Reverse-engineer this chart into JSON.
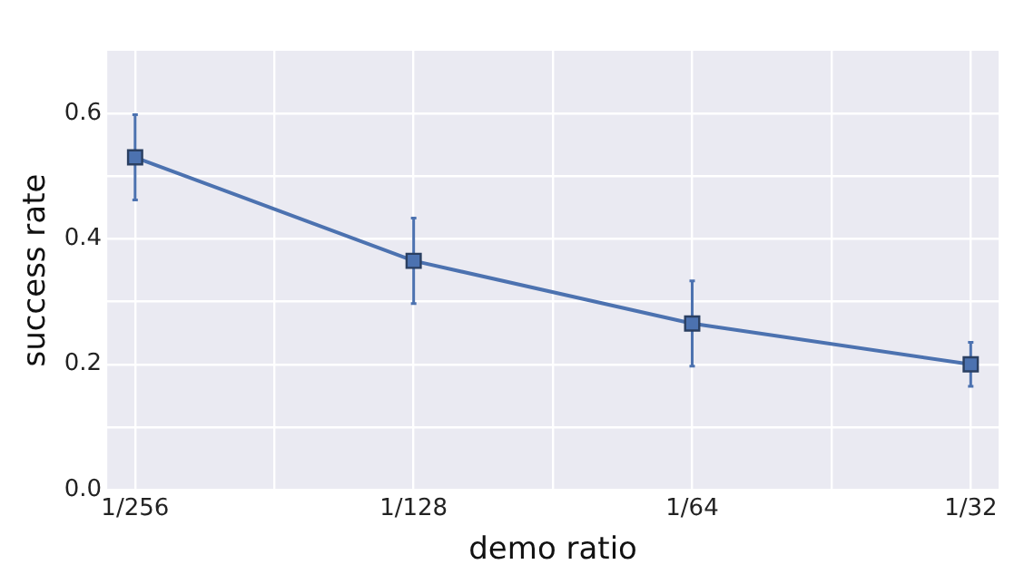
{
  "chart_data": {
    "type": "line",
    "xlabel": "demo ratio",
    "ylabel": "success rate",
    "categories": [
      "1/256",
      "1/128",
      "1/64",
      "1/32"
    ],
    "series": [
      {
        "color": "#4c72b0",
        "values": [
          0.53,
          0.365,
          0.265,
          0.2
        ],
        "errors": [
          0.068,
          0.068,
          0.068,
          0.035
        ]
      }
    ],
    "ylim": [
      0,
      0.7
    ],
    "yticks": [
      {
        "value": 0,
        "label": "0.0"
      },
      {
        "value": 0.1,
        "label": null
      },
      {
        "value": 0.2,
        "label": "0.2"
      },
      {
        "value": 0.3,
        "label": null
      },
      {
        "value": 0.4,
        "label": "0.4"
      },
      {
        "value": 0.5,
        "label": null
      },
      {
        "value": 0.6,
        "label": "0.6"
      }
    ],
    "grid": true,
    "legend": false,
    "marker": "square",
    "line_style": "solid"
  }
}
